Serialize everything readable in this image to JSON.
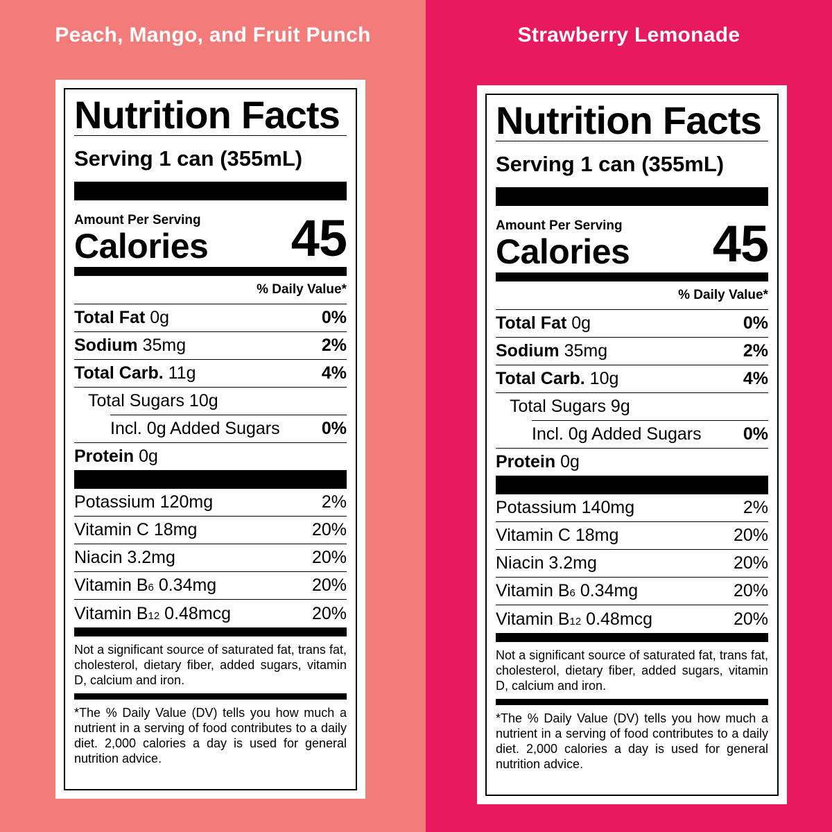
{
  "colors": {
    "left_bg": "#F37B7A",
    "right_bg": "#E8195F",
    "card": "#FFFFFF",
    "ink": "#000000"
  },
  "panels": [
    {
      "flavor": "Peach, Mango, and Fruit Punch",
      "title": "Nutrition Facts",
      "serving": "Serving 1 can (355mL)",
      "amount_per_serving": "Amount Per Serving",
      "calories_label": "Calories",
      "calories_value": "45",
      "dv_header": "% Daily Value*",
      "nutrients": [
        {
          "name": "Total Fat",
          "amount": "0g",
          "dv": "0%"
        },
        {
          "name": "Sodium",
          "amount": "35mg",
          "dv": "2%"
        },
        {
          "name": "Total Carb.",
          "amount": "11g",
          "dv": "4%"
        },
        {
          "name": "Total Sugars 10g",
          "amount": "",
          "dv": ""
        },
        {
          "name": "Incl. 0g Added Sugars",
          "amount": "",
          "dv": "0%"
        },
        {
          "name": "Protein",
          "amount": "0g",
          "dv": ""
        }
      ],
      "vitamins": [
        {
          "name": "Potassium 120mg",
          "dv": "2%"
        },
        {
          "name": "Vitamin C 18mg",
          "dv": "20%"
        },
        {
          "name": "Niacin 3.2mg",
          "dv": "20%"
        },
        {
          "name_pre": "Vitamin B",
          "sub": "6",
          "name_post": " 0.34mg",
          "dv": "20%"
        },
        {
          "name_pre": "Vitamin B",
          "sub": "12",
          "name_post": " 0.48mcg",
          "dv": "20%"
        }
      ],
      "not_significant": "Not a significant source of saturated fat, trans fat, cholesterol, dietary fiber, added sugars, vitamin D, calcium and iron.",
      "footnote": "*The % Daily Value (DV) tells you how much a nutrient in a serving of food contributes to a daily diet. 2,000 calories a day is used for general nutrition advice."
    },
    {
      "flavor": "Strawberry Lemonade",
      "title": "Nutrition Facts",
      "serving": "Serving 1 can (355mL)",
      "amount_per_serving": "Amount Per Serving",
      "calories_label": "Calories",
      "calories_value": "45",
      "dv_header": "% Daily Value*",
      "nutrients": [
        {
          "name": "Total Fat",
          "amount": "0g",
          "dv": "0%"
        },
        {
          "name": "Sodium",
          "amount": "35mg",
          "dv": "2%"
        },
        {
          "name": "Total Carb.",
          "amount": "10g",
          "dv": "4%"
        },
        {
          "name": "Total Sugars 9g",
          "amount": "",
          "dv": ""
        },
        {
          "name": "Incl. 0g Added Sugars",
          "amount": "",
          "dv": "0%"
        },
        {
          "name": "Protein",
          "amount": "0g",
          "dv": ""
        }
      ],
      "vitamins": [
        {
          "name": "Potassium 140mg",
          "dv": "2%"
        },
        {
          "name": "Vitamin C 18mg",
          "dv": "20%"
        },
        {
          "name": "Niacin 3.2mg",
          "dv": "20%"
        },
        {
          "name_pre": "Vitamin B",
          "sub": "6",
          "name_post": " 0.34mg",
          "dv": "20%"
        },
        {
          "name_pre": "Vitamin B",
          "sub": "12",
          "name_post": " 0.48mcg",
          "dv": "20%"
        }
      ],
      "not_significant": "Not a significant source of saturated fat, trans fat, cholesterol, dietary fiber, added sugars, vitamin D, calcium and iron.",
      "footnote": "*The % Daily Value (DV) tells you how much a nutrient in a serving of food contributes to a daily diet. 2,000 calories a day is used for general nutrition advice."
    }
  ]
}
